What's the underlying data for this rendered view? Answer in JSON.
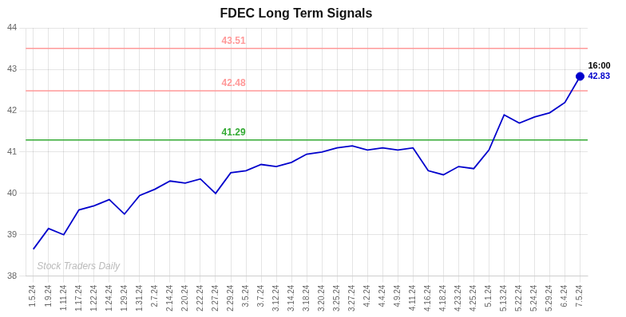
{
  "chart_data": {
    "type": "line",
    "title": "FDEC Long Term Signals",
    "categories": [
      "1.5.24",
      "1.9.24",
      "1.11.24",
      "1.17.24",
      "1.22.24",
      "1.24.24",
      "1.29.24",
      "1.31.24",
      "2.7.24",
      "2.14.24",
      "2.20.24",
      "2.22.24",
      "2.27.24",
      "2.29.24",
      "3.5.24",
      "3.7.24",
      "3.12.24",
      "3.14.24",
      "3.18.24",
      "3.20.24",
      "3.25.24",
      "3.27.24",
      "4.2.24",
      "4.4.24",
      "4.9.24",
      "4.11.24",
      "4.16.24",
      "4.18.24",
      "4.23.24",
      "4.25.24",
      "5.1.24",
      "5.13.24",
      "5.22.24",
      "5.24.24",
      "5.29.24",
      "6.4.24",
      "7.5.24"
    ],
    "values": [
      38.65,
      39.15,
      39.0,
      39.6,
      39.7,
      39.85,
      39.5,
      39.95,
      40.1,
      40.3,
      40.25,
      40.35,
      40.0,
      40.5,
      40.55,
      40.7,
      40.65,
      40.75,
      40.95,
      41.0,
      41.1,
      41.15,
      41.05,
      41.1,
      41.05,
      41.1,
      40.55,
      40.45,
      40.65,
      40.6,
      41.05,
      41.9,
      41.7,
      41.85,
      41.95,
      42.2,
      42.83
    ],
    "color": "#0000cc",
    "ylim": [
      38,
      44
    ],
    "yticks": [
      38,
      39,
      40,
      41,
      42,
      43,
      44
    ],
    "grid": true,
    "hlines": [
      {
        "value": 41.29,
        "label": "41.29",
        "color": "#33aa33"
      },
      {
        "value": 42.48,
        "label": "42.48",
        "color": "#ff9999"
      },
      {
        "value": 43.51,
        "label": "43.51",
        "color": "#ff9999"
      }
    ],
    "endpoint": {
      "label": "16:00",
      "value": 42.83,
      "color": "#0000cc"
    },
    "watermark": "Stock Traders Daily"
  }
}
